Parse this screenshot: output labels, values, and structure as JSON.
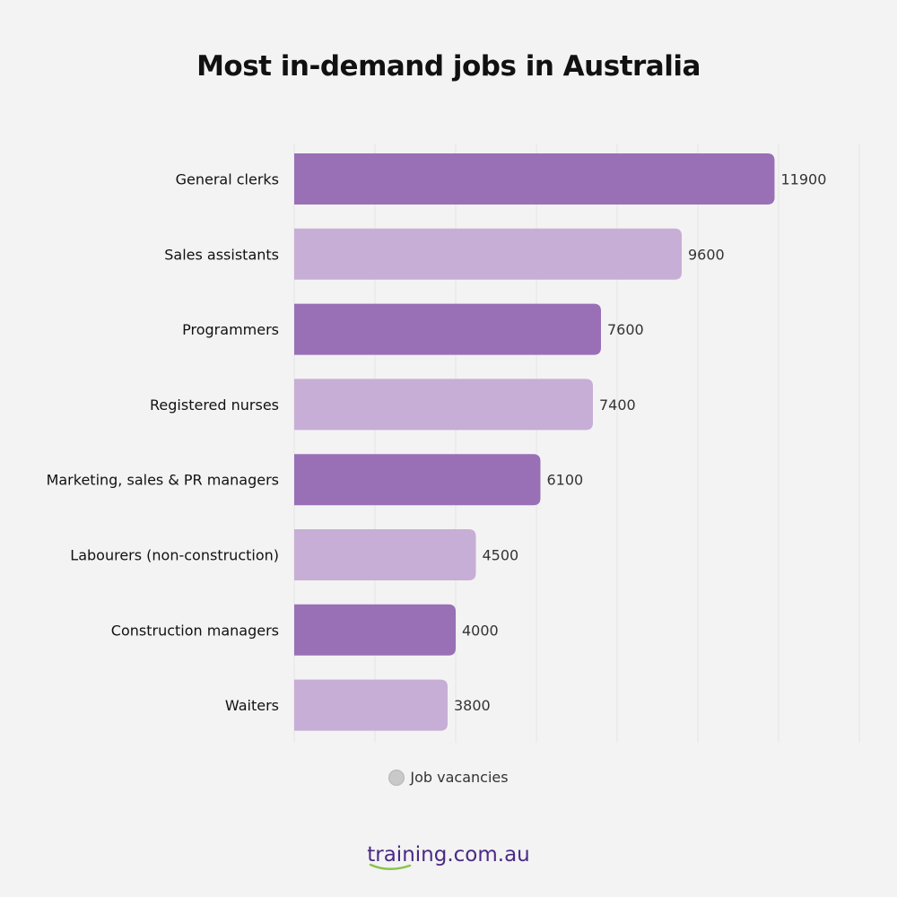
{
  "title": "Most in-demand jobs in Australia",
  "legend": {
    "label": "Job vacancies",
    "color": "#c9c9c9"
  },
  "brand": {
    "text": "training.com.au",
    "color": "#4b2a84",
    "swoosh_color": "#8bc34a"
  },
  "colors": {
    "dark": "#9970b6",
    "light": "#c7aed6",
    "grid": "#e6e6e6"
  },
  "chart_data": {
    "type": "bar",
    "orientation": "horizontal",
    "title": "Most in-demand jobs in Australia",
    "categories": [
      "General clerks",
      "Sales assistants",
      "Programmers",
      "Registered nurses",
      "Marketing, sales & PR managers",
      "Labourers (non-construction)",
      "Construction managers",
      "Waiters"
    ],
    "series": [
      {
        "name": "Job vacancies",
        "values": [
          11900,
          9600,
          7600,
          7400,
          6100,
          4500,
          4000,
          3800
        ]
      }
    ],
    "xlim": [
      0,
      14000
    ],
    "grid": true,
    "legend_position": "bottom"
  }
}
